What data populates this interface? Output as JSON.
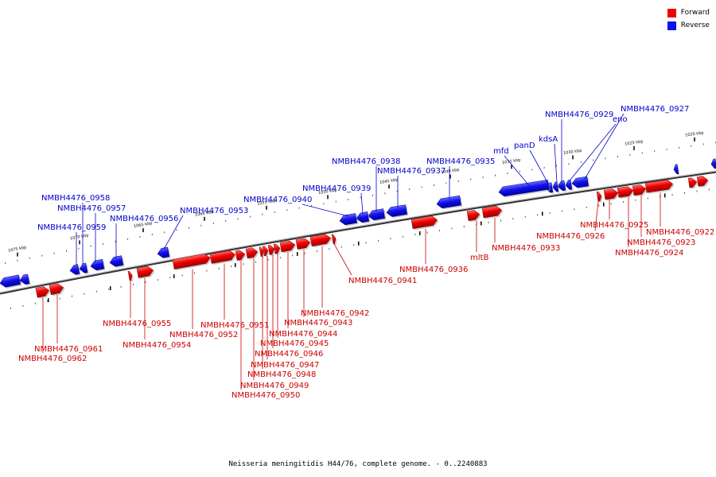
{
  "legend": {
    "forward_label": "Forward",
    "reverse_label": "Reverse",
    "forward_color": "#ee0000",
    "reverse_color": "#1111ee"
  },
  "caption": "Neisseria meningitidis H44/76, complete genome. - 0..2240883",
  "scale": {
    "ticks": [
      "1020 kbp",
      "1025 kbp",
      "1030 kbp",
      "1035 kbp",
      "1040 kbp",
      "1045 kbp",
      "1050 kbp",
      "1055 kbp",
      "1060 kbp",
      "1065 kbp",
      "1070 kbp",
      "1075 kbp"
    ]
  },
  "genes": [
    {
      "label": "NMBH4476_0922",
      "strand": "forward"
    },
    {
      "label": "NMBH4476_0923",
      "strand": "forward"
    },
    {
      "label": "NMBH4476_0924",
      "strand": "forward"
    },
    {
      "label": "NMBH4476_0925",
      "strand": "forward"
    },
    {
      "label": "NMBH4476_0926",
      "strand": "forward"
    },
    {
      "label": "NMBH4476_0927",
      "strand": "reverse"
    },
    {
      "label": "eno",
      "strand": "reverse"
    },
    {
      "label": "NMBH4476_0929",
      "strand": "reverse"
    },
    {
      "label": "kdsA",
      "strand": "reverse"
    },
    {
      "label": "panD",
      "strand": "reverse"
    },
    {
      "label": "mfd",
      "strand": "reverse"
    },
    {
      "label": "NMBH4476_0933",
      "strand": "forward"
    },
    {
      "label": "mltB",
      "strand": "forward"
    },
    {
      "label": "NMBH4476_0935",
      "strand": "reverse"
    },
    {
      "label": "NMBH4476_0936",
      "strand": "forward"
    },
    {
      "label": "NMBH4476_0937",
      "strand": "reverse"
    },
    {
      "label": "NMBH4476_0938",
      "strand": "reverse"
    },
    {
      "label": "NMBH4476_0939",
      "strand": "reverse"
    },
    {
      "label": "NMBH4476_0940",
      "strand": "reverse"
    },
    {
      "label": "NMBH4476_0941",
      "strand": "forward"
    },
    {
      "label": "NMBH4476_0942",
      "strand": "forward"
    },
    {
      "label": "NMBH4476_0943",
      "strand": "forward"
    },
    {
      "label": "NMBH4476_0944",
      "strand": "forward"
    },
    {
      "label": "NMBH4476_0945",
      "strand": "forward"
    },
    {
      "label": "NMBH4476_0946",
      "strand": "forward"
    },
    {
      "label": "NMBH4476_0947",
      "strand": "forward"
    },
    {
      "label": "NMBH4476_0948",
      "strand": "forward"
    },
    {
      "label": "NMBH4476_0949",
      "strand": "forward"
    },
    {
      "label": "NMBH4476_0950",
      "strand": "forward"
    },
    {
      "label": "NMBH4476_0951",
      "strand": "forward"
    },
    {
      "label": "NMBH4476_0952",
      "strand": "forward"
    },
    {
      "label": "NMBH4476_0953",
      "strand": "reverse"
    },
    {
      "label": "NMBH4476_0954",
      "strand": "forward"
    },
    {
      "label": "NMBH4476_0955",
      "strand": "forward"
    },
    {
      "label": "NMBH4476_0956",
      "strand": "reverse"
    },
    {
      "label": "NMBH4476_0957",
      "strand": "reverse"
    },
    {
      "label": "NMBH4476_0958",
      "strand": "reverse"
    },
    {
      "label": "NMBH4476_0959",
      "strand": "reverse"
    },
    {
      "label": "NMBH4476_0961",
      "strand": "forward"
    },
    {
      "label": "NMBH4476_0962",
      "strand": "forward"
    }
  ]
}
